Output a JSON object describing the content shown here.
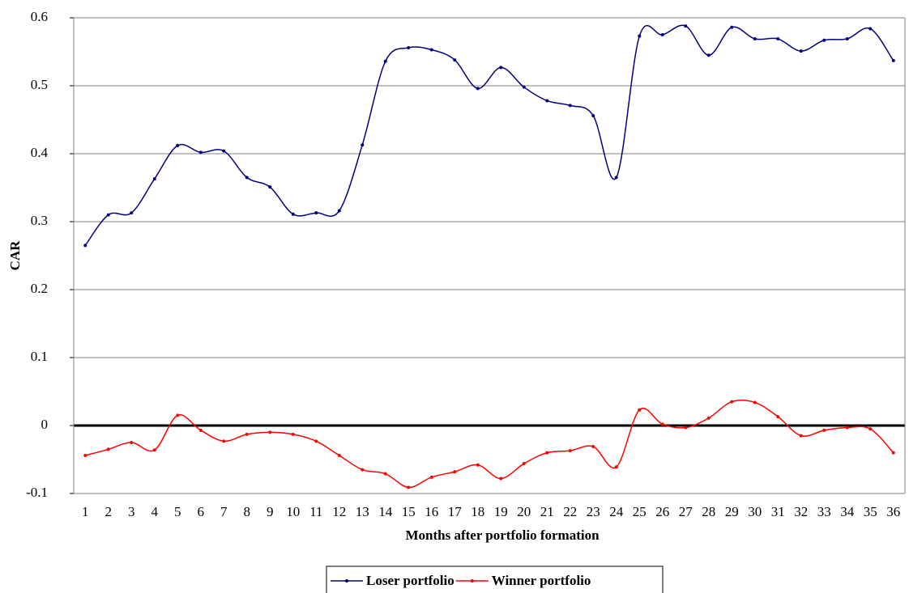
{
  "chart_data": {
    "type": "line",
    "x_label": "Months after portfolio formation",
    "y_label": "CAR",
    "categories": [
      "1",
      "2",
      "3",
      "4",
      "5",
      "6",
      "7",
      "8",
      "9",
      "10",
      "11",
      "12",
      "13",
      "14",
      "15",
      "16",
      "17",
      "18",
      "19",
      "20",
      "21",
      "22",
      "23",
      "24",
      "25",
      "26",
      "27",
      "28",
      "29",
      "30",
      "31",
      "32",
      "33",
      "34",
      "35",
      "36"
    ],
    "series": [
      {
        "name": "Loser portfolio",
        "color": "#000080",
        "values": [
          0.265,
          0.31,
          0.313,
          0.363,
          0.412,
          0.402,
          0.404,
          0.365,
          0.351,
          0.311,
          0.313,
          0.316,
          0.413,
          0.536,
          0.556,
          0.553,
          0.538,
          0.496,
          0.527,
          0.498,
          0.478,
          0.471,
          0.456,
          0.365,
          0.573,
          0.575,
          0.588,
          0.545,
          0.586,
          0.569,
          0.569,
          0.551,
          0.567,
          0.569,
          0.584,
          0.537
        ]
      },
      {
        "name": "Winner portfolio",
        "color": "#ff0000",
        "values": [
          -0.044,
          -0.035,
          -0.025,
          -0.036,
          0.015,
          -0.007,
          -0.023,
          -0.013,
          -0.01,
          -0.013,
          -0.023,
          -0.044,
          -0.065,
          -0.071,
          -0.091,
          -0.076,
          -0.068,
          -0.058,
          -0.078,
          -0.056,
          -0.04,
          -0.037,
          -0.031,
          -0.061,
          0.023,
          0.002,
          -0.003,
          0.011,
          0.035,
          0.034,
          0.013,
          -0.015,
          -0.007,
          -0.003,
          -0.005,
          -0.04
        ]
      }
    ],
    "ylim": [
      -0.1,
      0.6
    ],
    "yticks": [
      -0.1,
      0,
      0.1,
      0.2,
      0.3,
      0.4,
      0.5,
      0.6
    ],
    "grid": true,
    "legend": "bottom"
  }
}
